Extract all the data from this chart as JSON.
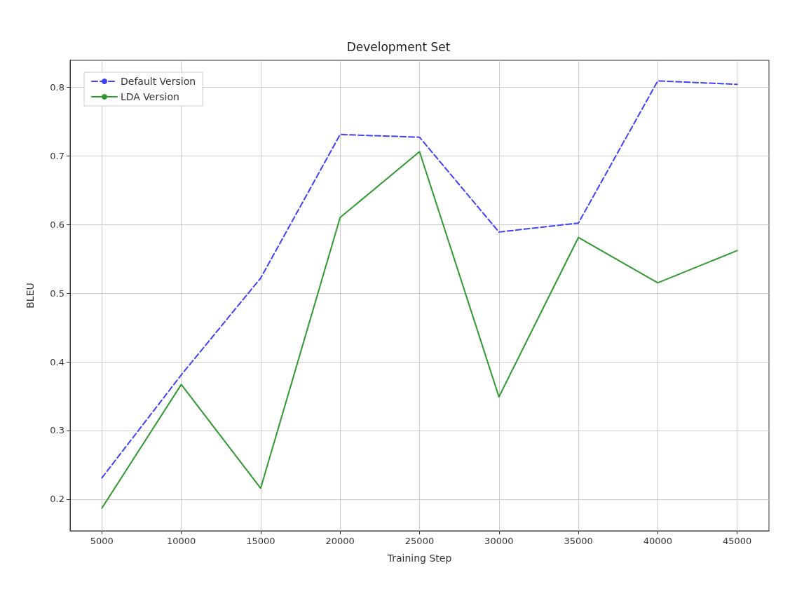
{
  "chart_data": {
    "type": "line",
    "title": "Development Set",
    "xlabel": "Training Step",
    "ylabel": "BLEU",
    "x": [
      5000,
      10000,
      15000,
      20000,
      25000,
      30000,
      35000,
      40000,
      45000
    ],
    "series": [
      {
        "name": "Default Version",
        "color": "#4040ff",
        "line_style": "dashed",
        "values": [
          0.231,
          0.381,
          0.522,
          0.731,
          0.727,
          0.589,
          0.602,
          0.809,
          0.804
        ]
      },
      {
        "name": "LDA Version",
        "color": "#2e9a2e",
        "line_style": "solid",
        "values": [
          0.187,
          0.367,
          0.216,
          0.61,
          0.706,
          0.349,
          0.581,
          0.515,
          0.562
        ]
      }
    ],
    "xlim": [
      3000,
      47000
    ],
    "xticks": [
      5000,
      10000,
      15000,
      20000,
      25000,
      30000,
      35000,
      40000,
      45000
    ],
    "ylim": [
      0.154,
      0.839
    ],
    "yticks": [
      0.2,
      0.3,
      0.4,
      0.5,
      0.6,
      0.7,
      0.8
    ],
    "grid": true,
    "legend": "top left",
    "marker": "none"
  }
}
